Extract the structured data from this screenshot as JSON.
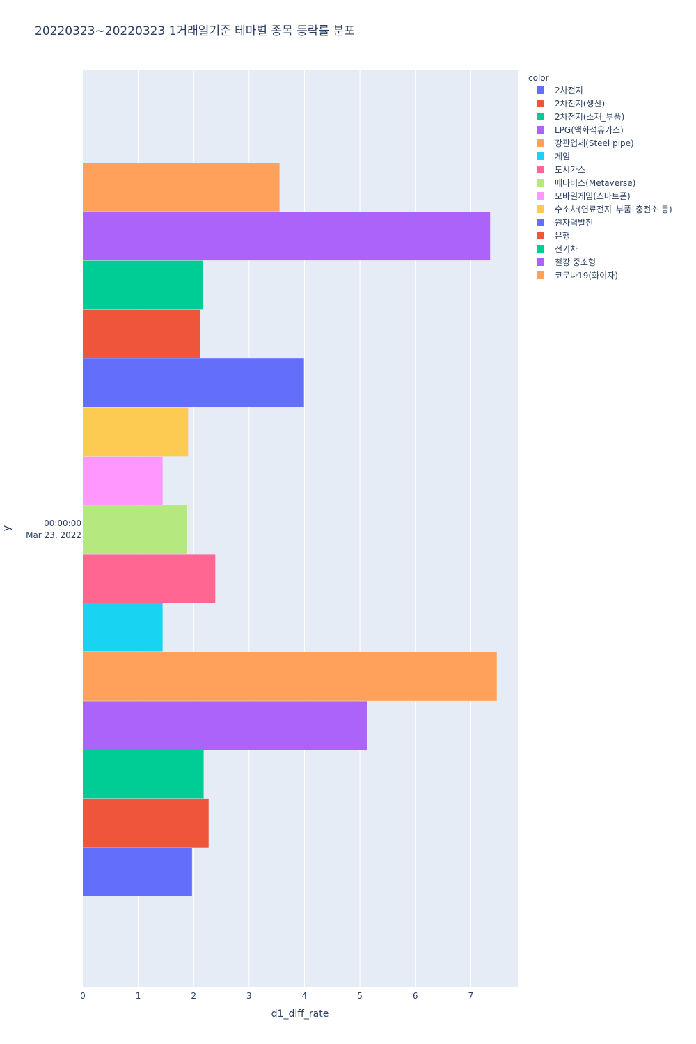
{
  "chart_data": {
    "type": "bar",
    "orientation": "horizontal",
    "title": "20220323~20220323 1거래일기준 테마별 종목 등락률 분포",
    "xlabel": "d1_diff_rate",
    "ylabel": "y",
    "xlim": [
      0,
      7.85
    ],
    "x_ticks": [
      0,
      1,
      2,
      3,
      4,
      5,
      6,
      7
    ],
    "y_category_label_line1": "00:00:00",
    "y_category_label_line2": "Mar 23, 2022",
    "grid": true,
    "legend_title": "color",
    "legend_position": "right",
    "series": [
      {
        "name": "2차전지",
        "color": "#636efa",
        "value": 1.97
      },
      {
        "name": "2차전지(생산)",
        "color": "#EF553B",
        "value": 2.27
      },
      {
        "name": "2차전지(소재_부품)",
        "color": "#00cc96",
        "value": 2.18
      },
      {
        "name": "LPG(액화석유가스)",
        "color": "#ab63fa",
        "value": 5.13
      },
      {
        "name": "강관업체(Steel pipe)",
        "color": "#FFA15A",
        "value": 7.47
      },
      {
        "name": "게임",
        "color": "#19d3f3",
        "value": 1.44
      },
      {
        "name": "도시가스",
        "color": "#FF6692",
        "value": 2.39
      },
      {
        "name": "메타버스(Metaverse)",
        "color": "#B6E880",
        "value": 1.87
      },
      {
        "name": "모바일게임(스마트폰)",
        "color": "#FF97FF",
        "value": 1.44
      },
      {
        "name": "수소차(연료전지_부품_충전소 등)",
        "color": "#FECB52",
        "value": 1.9
      },
      {
        "name": "원자력발전",
        "color": "#636efa",
        "value": 3.99
      },
      {
        "name": "은행",
        "color": "#EF553B",
        "value": 2.11
      },
      {
        "name": "전기차",
        "color": "#00cc96",
        "value": 2.16
      },
      {
        "name": "철강 중소형",
        "color": "#ab63fa",
        "value": 7.35
      },
      {
        "name": "코로나19(화이자)",
        "color": "#FFA15A",
        "value": 3.55
      }
    ]
  }
}
